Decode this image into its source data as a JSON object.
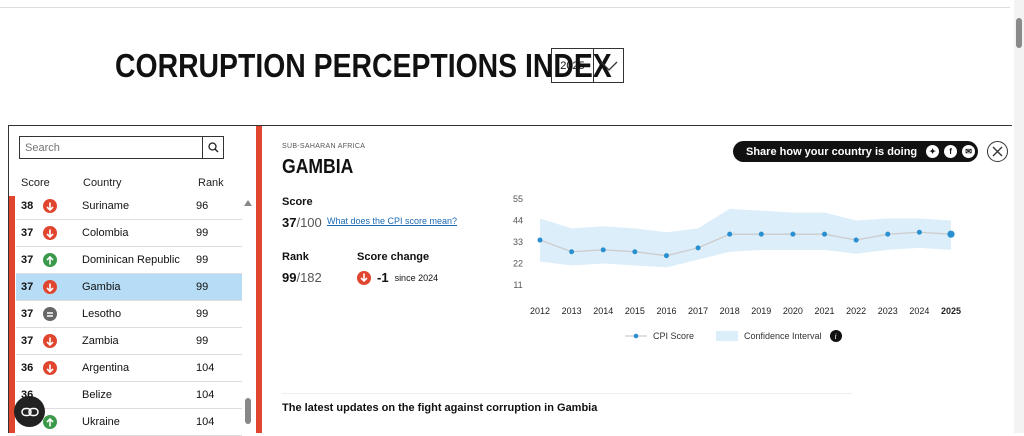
{
  "header": {
    "title": "CORRUPTION PERCEPTIONS INDEX",
    "year": "2025"
  },
  "search": {
    "placeholder": "Search"
  },
  "table": {
    "headers": {
      "score": "Score",
      "country": "Country",
      "rank": "Rank"
    },
    "rows": [
      {
        "score": "38",
        "trend": "down",
        "country": "Suriname",
        "rank": "96"
      },
      {
        "score": "37",
        "trend": "down",
        "country": "Colombia",
        "rank": "99"
      },
      {
        "score": "37",
        "trend": "up",
        "country": "Dominican Republic",
        "rank": "99"
      },
      {
        "score": "37",
        "trend": "down",
        "country": "Gambia",
        "rank": "99",
        "selected": true
      },
      {
        "score": "37",
        "trend": "equal",
        "country": "Lesotho",
        "rank": "99"
      },
      {
        "score": "37",
        "trend": "down",
        "country": "Zambia",
        "rank": "99"
      },
      {
        "score": "36",
        "trend": "down",
        "country": "Argentina",
        "rank": "104"
      },
      {
        "score": "36",
        "trend": "none",
        "country": "Belize",
        "rank": "104"
      },
      {
        "score": "36",
        "trend": "up",
        "country": "Ukraine",
        "rank": "104"
      }
    ]
  },
  "detail": {
    "region": "SUB-SAHARAN AFRICA",
    "country": "GAMBIA",
    "score_label": "Score",
    "score_value": "37",
    "score_of": "/100",
    "score_link": "What does the CPI score mean?",
    "rank_label": "Rank",
    "rank_value": "99",
    "rank_of": "/182",
    "change_label": "Score change",
    "change_value": "-1",
    "change_since": "since 2024",
    "share_text": "Share how your country is doing",
    "updates_heading": "The latest updates on the fight against corruption in Gambia"
  },
  "colors": {
    "accent_red": "#e0452e",
    "selected_row": "#b7dcf5",
    "line": "#cccccc",
    "point": "#2a8fd1",
    "band": "#dceefa",
    "up_green": "#3a9a4a",
    "equal_grey": "#666666"
  },
  "chart_data": {
    "type": "line",
    "x": [
      "2012",
      "2013",
      "2014",
      "2015",
      "2016",
      "2017",
      "2018",
      "2019",
      "2020",
      "2021",
      "2022",
      "2023",
      "2024",
      "2025"
    ],
    "series": [
      {
        "name": "CPI Score",
        "values": [
          34,
          28,
          29,
          28,
          26,
          30,
          37,
          37,
          37,
          37,
          34,
          37,
          38,
          37
        ]
      }
    ],
    "confidence_interval": {
      "name": "Confidence Interval",
      "lower": [
        23,
        21,
        22,
        21,
        20,
        24,
        28,
        29,
        29,
        29,
        27,
        29,
        30,
        29
      ],
      "upper": [
        45,
        40,
        41,
        40,
        38,
        40,
        50,
        49,
        48,
        48,
        44,
        45,
        45,
        44
      ]
    },
    "yticks": [
      "55",
      "44",
      "33",
      "22",
      "11"
    ],
    "ylim": [
      11,
      55
    ],
    "grid": false,
    "legend": "bottom"
  }
}
